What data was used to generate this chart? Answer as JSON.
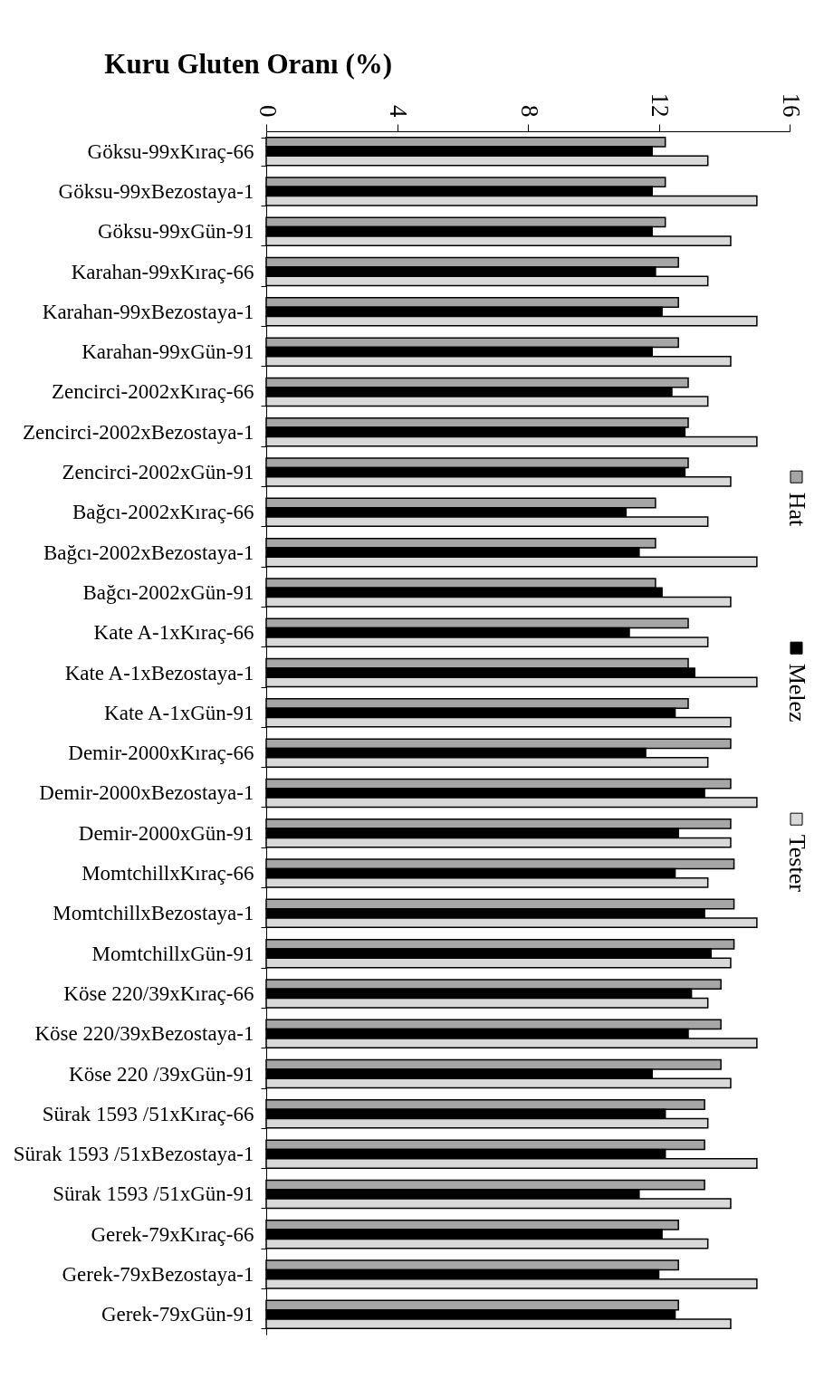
{
  "chart_data": {
    "type": "bar",
    "title": "Kuru Gluten Oranı (%)",
    "orientation": "horizontal",
    "categories": [
      "Göksu-99xKıraç-66",
      "Göksu-99xBezostaya-1",
      "Göksu-99xGün-91",
      "Karahan-99xKıraç-66",
      "Karahan-99xBezostaya-1",
      "Karahan-99xGün-91",
      "Zencirci-2002xKıraç-66",
      "Zencirci-2002xBezostaya-1",
      "Zencirci-2002xGün-91",
      "Bağcı-2002xKıraç-66",
      "Bağcı-2002xBezostaya-1",
      "Bağcı-2002xGün-91",
      "Kate A-1xKıraç-66",
      "Kate A-1xBezostaya-1",
      "Kate A-1xGün-91",
      "Demir-2000xKıraç-66",
      "Demir-2000xBezostaya-1",
      "Demir-2000xGün-91",
      "MomtchillxKıraç-66",
      "MomtchillxBezostaya-1",
      "MomtchillxGün-91",
      "Köse 220/39xKıraç-66",
      "Köse 220/39xBezostaya-1",
      "Köse 220 /39xGün-91",
      "Sürak 1593 /51xKıraç-66",
      "Sürak 1593 /51xBezostaya-1",
      "Sürak 1593 /51xGün-91",
      "Gerek-79xKıraç-66",
      "Gerek-79xBezostaya-1",
      "Gerek-79xGün-91"
    ],
    "series": [
      {
        "name": "Hat",
        "color": "#a6a6a6",
        "values": [
          12.2,
          12.2,
          12.2,
          12.6,
          12.6,
          12.6,
          12.9,
          12.9,
          12.9,
          11.9,
          11.9,
          11.9,
          12.9,
          12.9,
          12.9,
          14.2,
          14.2,
          14.2,
          14.3,
          14.3,
          14.3,
          13.9,
          13.9,
          13.9,
          13.4,
          13.4,
          13.4,
          12.6,
          12.6,
          12.6
        ]
      },
      {
        "name": "Melez",
        "color": "#000000",
        "values": [
          11.8,
          11.8,
          11.8,
          11.9,
          12.1,
          11.8,
          12.4,
          12.8,
          12.8,
          11.0,
          11.4,
          12.1,
          11.1,
          13.1,
          12.5,
          11.6,
          13.4,
          12.6,
          12.5,
          13.4,
          13.6,
          13.0,
          12.9,
          11.8,
          12.2,
          12.2,
          11.4,
          12.1,
          12.0,
          12.5
        ]
      },
      {
        "name": "Tester",
        "color": "#d9d9d9",
        "values": [
          13.5,
          15.0,
          14.2,
          13.5,
          15.0,
          14.2,
          13.5,
          15.0,
          14.2,
          13.5,
          15.0,
          14.2,
          13.5,
          15.0,
          14.2,
          13.5,
          15.0,
          14.2,
          13.5,
          15.0,
          14.2,
          13.5,
          15.0,
          14.2,
          13.5,
          15.0,
          14.2,
          13.5,
          15.0,
          14.2
        ]
      }
    ],
    "xlim": [
      0,
      16
    ],
    "xticks": [
      0,
      4,
      8,
      12,
      16
    ],
    "legend": "right"
  }
}
